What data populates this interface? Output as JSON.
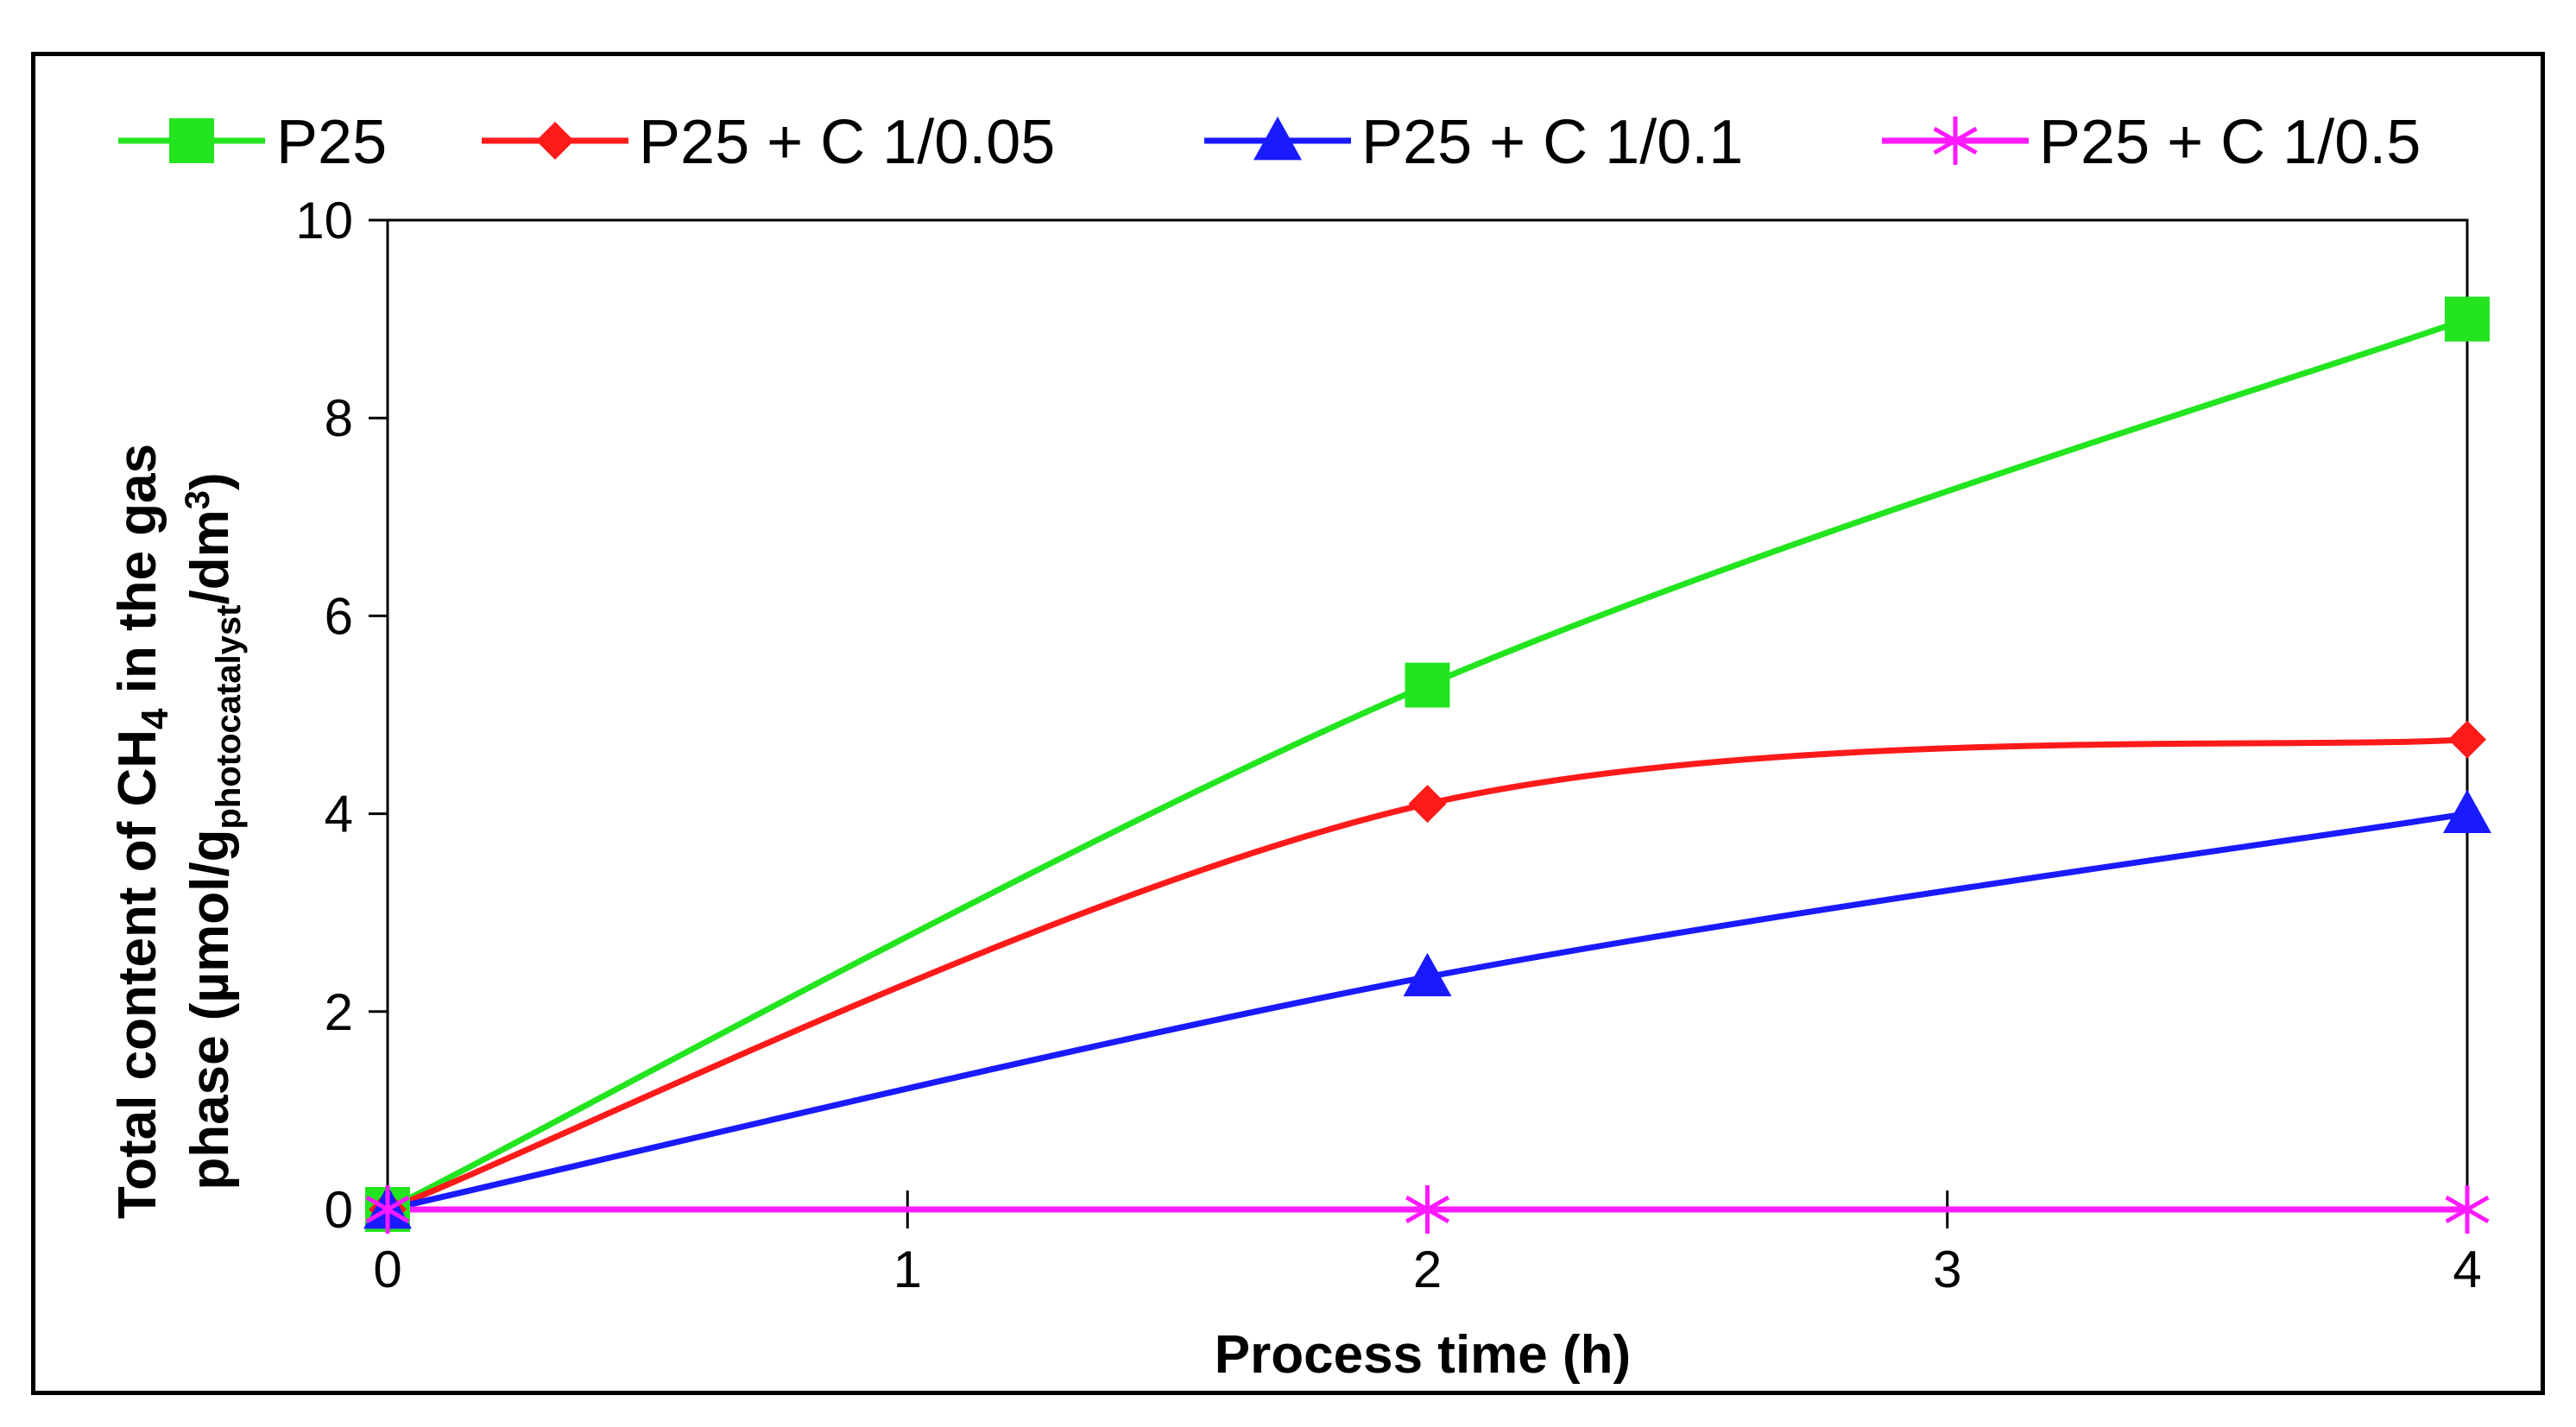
{
  "chart_data": {
    "type": "line",
    "title": "",
    "xlabel": "Process time (h)",
    "ylabel": {
      "line1_prefix": "Total content of CH",
      "line1_sub": "4",
      "line1_suffix": " in the gas",
      "line2_prefix": "phase (µmol/g",
      "line2_sub": "photocatalyst",
      "line2_mid": "/dm",
      "line2_sup": "3",
      "line2_suffix": ")"
    },
    "xlim": [
      0,
      4
    ],
    "ylim": [
      0,
      10
    ],
    "xticks": [
      "0",
      "1",
      "2",
      "3",
      "4"
    ],
    "yticks": [
      "0",
      "2",
      "4",
      "6",
      "8",
      "10"
    ],
    "legend_position": "top",
    "series": [
      {
        "name": "P25",
        "color": "#22e51f",
        "marker": "square",
        "x": [
          0,
          2,
          4
        ],
        "values": [
          0,
          5.3,
          9.0
        ]
      },
      {
        "name": "P25 + C 1/0.05",
        "color": "#ff1a1a",
        "marker": "diamond",
        "x": [
          0,
          2,
          4
        ],
        "values": [
          0,
          4.1,
          4.75
        ]
      },
      {
        "name": "P25 + C 1/0.1",
        "color": "#1a1aff",
        "marker": "triangle",
        "x": [
          0,
          2,
          4
        ],
        "values": [
          0,
          2.35,
          4.0
        ]
      },
      {
        "name": "P25 + C 1/0.5",
        "color": "#ff1aff",
        "marker": "asterisk",
        "x": [
          0,
          2,
          4
        ],
        "values": [
          0,
          0,
          0
        ]
      }
    ]
  }
}
